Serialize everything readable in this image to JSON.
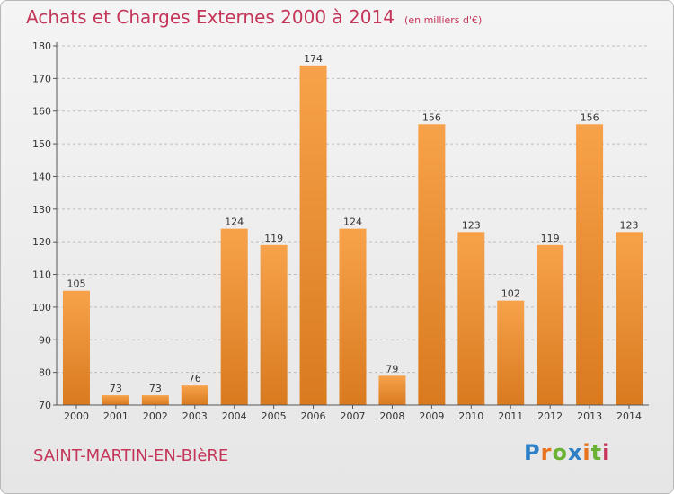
{
  "header": {
    "title": "Achats et Charges Externes 2000 à 2014",
    "unit": "(en milliers d'€)"
  },
  "footer": {
    "commune": "SAINT-MARTIN-EN-BIèRE",
    "logo": "Proxiti",
    "logo_colors": [
      "#2e7fc4",
      "#e8741e",
      "#6bb234",
      "#2e7fc4",
      "#e8741e",
      "#6bb234",
      "#c4365a"
    ]
  },
  "colors": {
    "bar": "#f2973a",
    "bar_dark": "#d97a1f",
    "title": "#c4365a",
    "grid": "#bdbdbd"
  },
  "chart_data": {
    "type": "bar",
    "title": "Achats et Charges Externes 2000 à 2014",
    "subtitle": "(en milliers d'€)",
    "xlabel": "",
    "ylabel": "",
    "ylim": [
      70,
      180
    ],
    "yticks": [
      70,
      80,
      90,
      100,
      110,
      120,
      130,
      140,
      150,
      160,
      170,
      180
    ],
    "grid": true,
    "categories": [
      "2000",
      "2001",
      "2002",
      "2003",
      "2004",
      "2005",
      "2006",
      "2007",
      "2008",
      "2009",
      "2010",
      "2011",
      "2012",
      "2013",
      "2014"
    ],
    "values": [
      105,
      73,
      73,
      76,
      124,
      119,
      174,
      124,
      79,
      156,
      123,
      102,
      119,
      156,
      123
    ]
  }
}
